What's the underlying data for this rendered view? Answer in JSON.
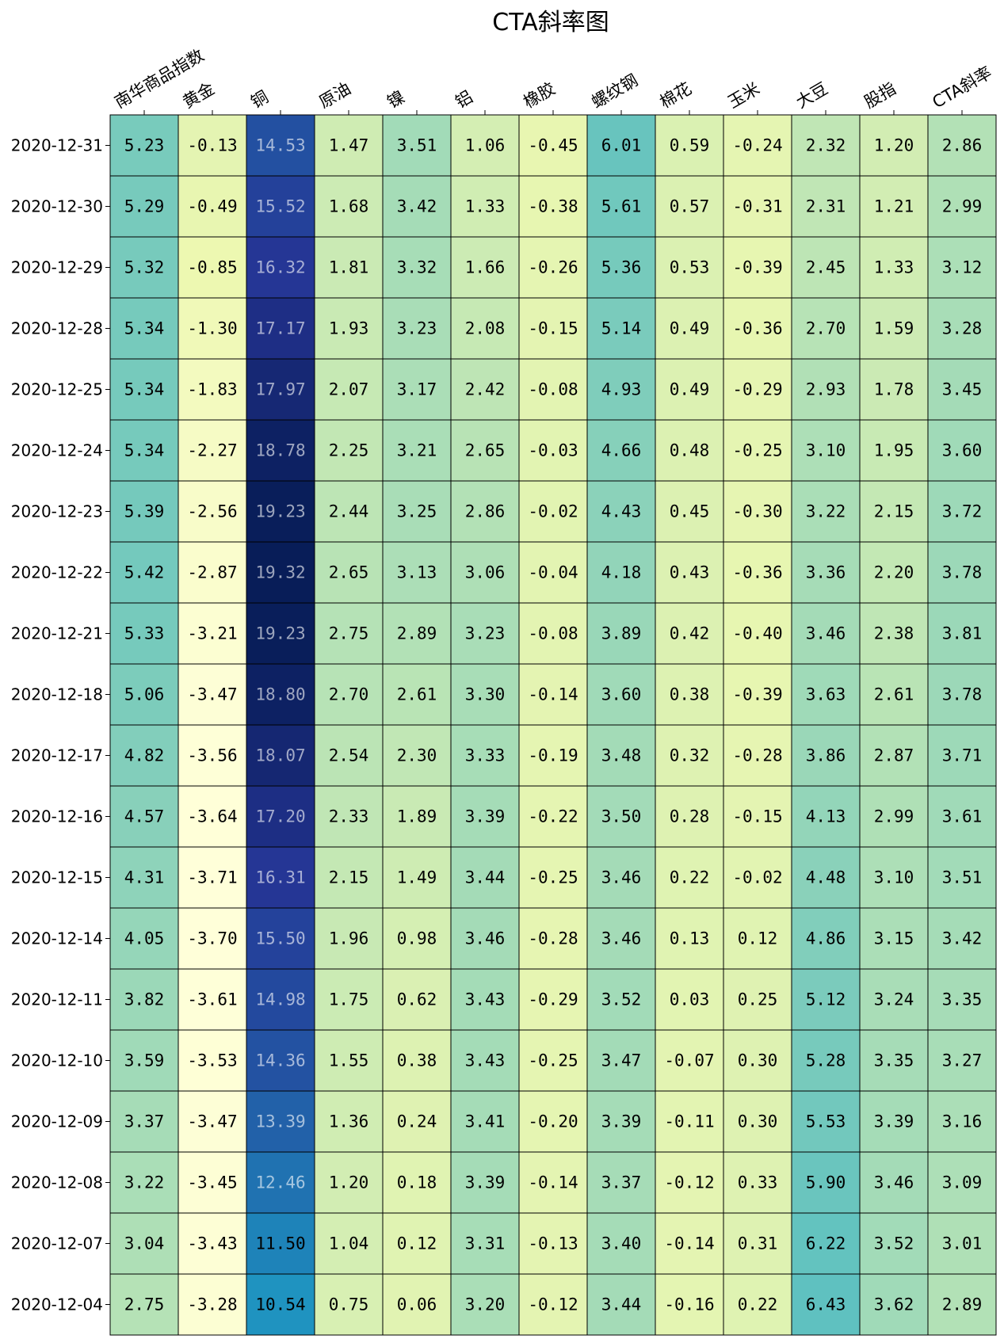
{
  "chart_data": {
    "type": "heatmap",
    "title": "CTA斜率图",
    "columns": [
      "南华商品指数",
      "黄金",
      "铜",
      "原油",
      "镍",
      "铝",
      "橡胶",
      "螺纹钢",
      "棉花",
      "玉米",
      "大豆",
      "股指",
      "CTA斜率"
    ],
    "rows": [
      "2020-12-31",
      "2020-12-30",
      "2020-12-29",
      "2020-12-28",
      "2020-12-25",
      "2020-12-24",
      "2020-12-23",
      "2020-12-22",
      "2020-12-21",
      "2020-12-18",
      "2020-12-17",
      "2020-12-16",
      "2020-12-15",
      "2020-12-14",
      "2020-12-11",
      "2020-12-10",
      "2020-12-09",
      "2020-12-08",
      "2020-12-07",
      "2020-12-04"
    ],
    "values": [
      [
        5.23,
        -0.13,
        14.53,
        1.47,
        3.51,
        1.06,
        -0.45,
        6.01,
        0.59,
        -0.24,
        2.32,
        1.2,
        2.86
      ],
      [
        5.29,
        -0.49,
        15.52,
        1.68,
        3.42,
        1.33,
        -0.38,
        5.61,
        0.57,
        -0.31,
        2.31,
        1.21,
        2.99
      ],
      [
        5.32,
        -0.85,
        16.32,
        1.81,
        3.32,
        1.66,
        -0.26,
        5.36,
        0.53,
        -0.39,
        2.45,
        1.33,
        3.12
      ],
      [
        5.34,
        -1.3,
        17.17,
        1.93,
        3.23,
        2.08,
        -0.15,
        5.14,
        0.49,
        -0.36,
        2.7,
        1.59,
        3.28
      ],
      [
        5.34,
        -1.83,
        17.97,
        2.07,
        3.17,
        2.42,
        -0.08,
        4.93,
        0.49,
        -0.29,
        2.93,
        1.78,
        3.45
      ],
      [
        5.34,
        -2.27,
        18.78,
        2.25,
        3.21,
        2.65,
        -0.03,
        4.66,
        0.48,
        -0.25,
        3.1,
        1.95,
        3.6
      ],
      [
        5.39,
        -2.56,
        19.23,
        2.44,
        3.25,
        2.86,
        -0.02,
        4.43,
        0.45,
        -0.3,
        3.22,
        2.15,
        3.72
      ],
      [
        5.42,
        -2.87,
        19.32,
        2.65,
        3.13,
        3.06,
        -0.04,
        4.18,
        0.43,
        -0.36,
        3.36,
        2.2,
        3.78
      ],
      [
        5.33,
        -3.21,
        19.23,
        2.75,
        2.89,
        3.23,
        -0.08,
        3.89,
        0.42,
        -0.4,
        3.46,
        2.38,
        3.81
      ],
      [
        5.06,
        -3.47,
        18.8,
        2.7,
        2.61,
        3.3,
        -0.14,
        3.6,
        0.38,
        -0.39,
        3.63,
        2.61,
        3.78
      ],
      [
        4.82,
        -3.56,
        18.07,
        2.54,
        2.3,
        3.33,
        -0.19,
        3.48,
        0.32,
        -0.28,
        3.86,
        2.87,
        3.71
      ],
      [
        4.57,
        -3.64,
        17.2,
        2.33,
        1.89,
        3.39,
        -0.22,
        3.5,
        0.28,
        -0.15,
        4.13,
        2.99,
        3.61
      ],
      [
        4.31,
        -3.71,
        16.31,
        2.15,
        1.49,
        3.44,
        -0.25,
        3.46,
        0.22,
        -0.02,
        4.48,
        3.1,
        3.51
      ],
      [
        4.05,
        -3.7,
        15.5,
        1.96,
        0.98,
        3.46,
        -0.28,
        3.46,
        0.13,
        0.12,
        4.86,
        3.15,
        3.42
      ],
      [
        3.82,
        -3.61,
        14.98,
        1.75,
        0.62,
        3.43,
        -0.29,
        3.52,
        0.03,
        0.25,
        5.12,
        3.24,
        3.35
      ],
      [
        3.59,
        -3.53,
        14.36,
        1.55,
        0.38,
        3.43,
        -0.25,
        3.47,
        -0.07,
        0.3,
        5.28,
        3.35,
        3.27
      ],
      [
        3.37,
        -3.47,
        13.39,
        1.36,
        0.24,
        3.41,
        -0.2,
        3.39,
        -0.11,
        0.3,
        5.53,
        3.39,
        3.16
      ],
      [
        3.22,
        -3.45,
        12.46,
        1.2,
        0.18,
        3.39,
        -0.14,
        3.37,
        -0.12,
        0.33,
        5.9,
        3.46,
        3.09
      ],
      [
        3.04,
        -3.43,
        11.5,
        1.04,
        0.12,
        3.31,
        -0.13,
        3.4,
        -0.14,
        0.31,
        6.22,
        3.52,
        3.01
      ],
      [
        2.75,
        -3.28,
        10.54,
        0.75,
        0.06,
        3.2,
        -0.12,
        3.44,
        -0.16,
        0.22,
        6.43,
        3.62,
        2.89
      ]
    ],
    "colormap": "YlGnBu",
    "value_range": [
      -3.71,
      19.32
    ],
    "legend": "none"
  }
}
